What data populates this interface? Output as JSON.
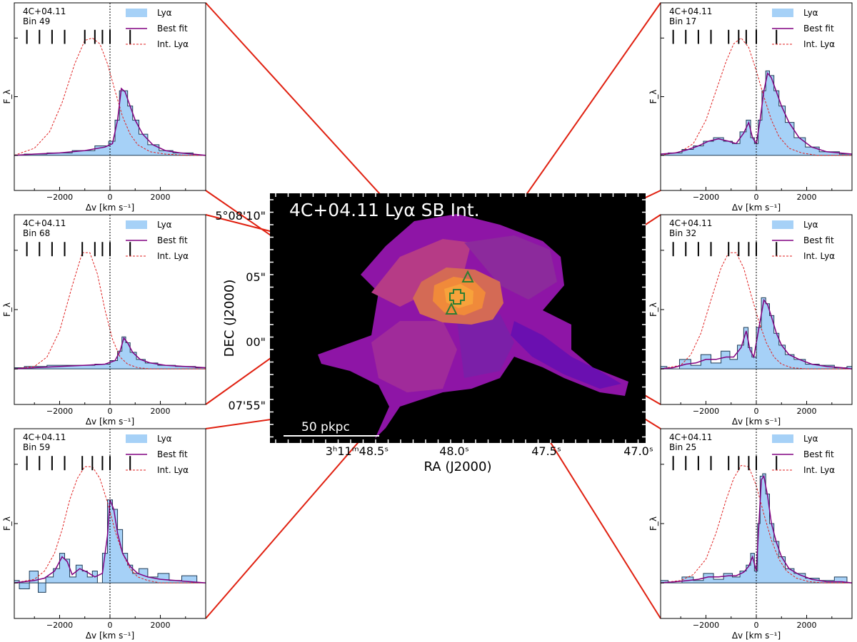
{
  "colors": {
    "lya_fill": "#a6d1f7",
    "lya_step": "#1f3b55",
    "best_fit": "#800080",
    "int_lya": "#e02020",
    "connector": "#e02010",
    "map_background": "#000000",
    "marker": "#2e7d32"
  },
  "map": {
    "title": "4C+04.11 Lyα SB Int.",
    "xlabel": "RA (J2000)",
    "ylabel": "DEC (J2000)",
    "x_ticks": [
      "3ʰ11ᵐ48.5ˢ",
      "48.0ˢ",
      "47.5ˢ",
      "47.0ˢ"
    ],
    "y_ticks": [
      "5°08'10\"",
      "05\"",
      "00\"",
      "07'55\""
    ],
    "scale_bar_label": "50 pkpc",
    "markers": [
      {
        "symbol": "cross",
        "name": "plus-marker"
      },
      {
        "symbol": "triangle",
        "name": "triangle-marker"
      },
      {
        "symbol": "triangle",
        "name": "triangle-marker"
      }
    ]
  },
  "chart_data": [
    {
      "type": "line",
      "panel": "top-left",
      "title": "4C+04.11",
      "subtitle": "Bin 49",
      "xlabel": "Δv [km s⁻¹]",
      "ylabel": "F_λ",
      "xlim": [
        -3800,
        3800
      ],
      "ylim": [
        -0.3,
        1.3
      ],
      "x_ticks": [
        -2000,
        0,
        2000
      ],
      "legend_position": "top-right",
      "series": [
        {
          "name": "Lyα",
          "style": "filled-step",
          "x": [
            -3800,
            -3000,
            -2000,
            -1000,
            -200,
            100,
            300,
            450,
            600,
            800,
            1000,
            1300,
            1700,
            2200,
            2800,
            3800
          ],
          "y": [
            0,
            0.01,
            0.02,
            0.04,
            0.08,
            0.12,
            0.3,
            0.55,
            0.55,
            0.42,
            0.3,
            0.18,
            0.09,
            0.04,
            0.02,
            0
          ]
        },
        {
          "name": "Best fit",
          "x": [
            -3800,
            -3000,
            -2000,
            -1000,
            -200,
            100,
            300,
            450,
            600,
            800,
            1000,
            1300,
            1700,
            2200,
            2800,
            3800
          ],
          "y": [
            0,
            0.01,
            0.02,
            0.04,
            0.07,
            0.1,
            0.3,
            0.57,
            0.54,
            0.42,
            0.3,
            0.18,
            0.09,
            0.04,
            0.02,
            0
          ]
        },
        {
          "name": "Int. Lyα",
          "x": [
            -3800,
            -3000,
            -2400,
            -1900,
            -1400,
            -1000,
            -700,
            -400,
            -100,
            200,
            500,
            800,
            1100,
            1600,
            2200,
            3000,
            3800
          ],
          "y": [
            0,
            0.06,
            0.2,
            0.45,
            0.78,
            0.98,
            1.0,
            0.95,
            0.78,
            0.55,
            0.33,
            0.18,
            0.09,
            0.03,
            0.01,
            0,
            0
          ]
        }
      ],
      "absorber_velocities": [
        -3300,
        -2800,
        -2300,
        -1800,
        -1000,
        -600,
        -300,
        0,
        800
      ]
    },
    {
      "type": "line",
      "panel": "middle-left",
      "title": "4C+04.11",
      "subtitle": "Bin 68",
      "xlabel": "Δv [km s⁻¹]",
      "ylabel": "F_λ",
      "xlim": [
        -3800,
        3800
      ],
      "ylim": [
        -0.3,
        1.3
      ],
      "x_ticks": [
        -2000,
        0,
        2000
      ],
      "legend_position": "top-right",
      "series": [
        {
          "name": "Lyα",
          "style": "filled-step",
          "x": [
            -3800,
            -3000,
            -2000,
            -1000,
            -200,
            200,
            400,
            550,
            700,
            900,
            1200,
            1600,
            2200,
            3000,
            3800
          ],
          "y": [
            0.01,
            0.02,
            0.03,
            0.03,
            0.04,
            0.07,
            0.15,
            0.27,
            0.22,
            0.14,
            0.08,
            0.05,
            0.03,
            0.02,
            0.01
          ]
        },
        {
          "name": "Best fit",
          "x": [
            -3800,
            -3000,
            -2000,
            -1000,
            -200,
            200,
            400,
            550,
            700,
            900,
            1200,
            1600,
            2200,
            3000,
            3800
          ],
          "y": [
            0,
            0.01,
            0.02,
            0.03,
            0.04,
            0.07,
            0.15,
            0.26,
            0.22,
            0.14,
            0.08,
            0.05,
            0.03,
            0.02,
            0.01
          ]
        },
        {
          "name": "Int. Lyα",
          "x": [
            -3800,
            -3000,
            -2500,
            -2000,
            -1500,
            -1100,
            -800,
            -500,
            -200,
            100,
            400,
            700,
            1100,
            1600,
            2200,
            3000,
            3800
          ],
          "y": [
            0,
            0.02,
            0.1,
            0.32,
            0.7,
            0.98,
            0.98,
            0.8,
            0.5,
            0.25,
            0.1,
            0.04,
            0.01,
            0,
            0,
            0,
            0
          ]
        }
      ],
      "absorber_velocities": [
        -3300,
        -2800,
        -2300,
        -1800,
        -1100,
        -600,
        -300,
        0,
        800
      ]
    },
    {
      "type": "line",
      "panel": "bottom-left",
      "title": "4C+04.11",
      "subtitle": "Bin 59",
      "xlabel": "Δv [km s⁻¹]",
      "ylabel": "F_λ",
      "xlim": [
        -3800,
        3800
      ],
      "ylim": [
        -0.3,
        1.3
      ],
      "x_ticks": [
        -2000,
        0,
        2000
      ],
      "legend_position": "top-right",
      "series": [
        {
          "name": "Lyα",
          "style": "filled-step",
          "x": [
            -3800,
            -3400,
            -3000,
            -2700,
            -2400,
            -2100,
            -1900,
            -1700,
            -1500,
            -1200,
            -1000,
            -800,
            -600,
            -400,
            -200,
            0,
            200,
            400,
            600,
            800,
            1000,
            1300,
            1700,
            2100,
            2600,
            3100,
            3800
          ],
          "y": [
            0.02,
            -0.05,
            0.1,
            -0.08,
            0.05,
            0.12,
            0.25,
            0.2,
            0.05,
            0.15,
            0.1,
            0.05,
            0.1,
            0.0,
            0.25,
            0.7,
            0.62,
            0.45,
            0.25,
            0.15,
            0.08,
            0.12,
            0.05,
            0.08,
            0.02,
            0.06,
            0.0
          ]
        },
        {
          "name": "Best fit",
          "x": [
            -3800,
            -3000,
            -2600,
            -2200,
            -1900,
            -1700,
            -1500,
            -1200,
            -900,
            -600,
            -300,
            -100,
            0,
            150,
            300,
            500,
            800,
            1100,
            1500,
            2000,
            2600,
            3200,
            3800
          ],
          "y": [
            0,
            0.02,
            0.04,
            0.1,
            0.22,
            0.18,
            0.07,
            0.12,
            0.09,
            0.05,
            0.08,
            0.4,
            0.7,
            0.62,
            0.42,
            0.25,
            0.14,
            0.08,
            0.05,
            0.03,
            0.02,
            0.01,
            0
          ]
        },
        {
          "name": "Int. Lyα",
          "x": [
            -3800,
            -3000,
            -2600,
            -2200,
            -1900,
            -1600,
            -1300,
            -1000,
            -700,
            -400,
            -100,
            200,
            500,
            800,
            1100,
            1500,
            2000,
            2600,
            3200,
            3800
          ],
          "y": [
            0,
            0.03,
            0.1,
            0.25,
            0.45,
            0.7,
            0.88,
            0.98,
            0.98,
            0.88,
            0.68,
            0.44,
            0.25,
            0.12,
            0.05,
            0.02,
            0,
            0,
            0,
            0
          ]
        }
      ],
      "absorber_velocities": [
        -3300,
        -2800,
        -2300,
        -1800,
        -1100,
        -700,
        -300,
        0,
        800
      ]
    },
    {
      "type": "line",
      "panel": "top-right",
      "title": "4C+04.11",
      "subtitle": "Bin 17",
      "xlabel": "Δv [km s⁻¹]",
      "ylabel": "F_λ",
      "xlim": [
        -3800,
        3800
      ],
      "ylim": [
        -0.3,
        1.3
      ],
      "x_ticks": [
        -2000,
        0,
        2000
      ],
      "legend_position": "top-right",
      "series": [
        {
          "name": "Lyα",
          "style": "filled-step",
          "x": [
            -3800,
            -3200,
            -2700,
            -2300,
            -1900,
            -1500,
            -1100,
            -800,
            -500,
            -300,
            -150,
            0,
            150,
            300,
            450,
            600,
            800,
            1000,
            1300,
            1700,
            2200,
            2800,
            3800
          ],
          "y": [
            0.01,
            0.02,
            0.05,
            0.08,
            0.12,
            0.15,
            0.12,
            0.1,
            0.2,
            0.3,
            0.15,
            0.1,
            0.3,
            0.55,
            0.72,
            0.68,
            0.55,
            0.42,
            0.28,
            0.15,
            0.07,
            0.03,
            0.01
          ]
        },
        {
          "name": "Best fit",
          "x": [
            -3800,
            -3200,
            -2700,
            -2300,
            -1900,
            -1500,
            -1100,
            -800,
            -500,
            -300,
            -150,
            0,
            150,
            300,
            450,
            600,
            800,
            1000,
            1300,
            1700,
            2200,
            2800,
            3800
          ],
          "y": [
            0.01,
            0.02,
            0.05,
            0.08,
            0.12,
            0.14,
            0.12,
            0.1,
            0.19,
            0.28,
            0.15,
            0.1,
            0.3,
            0.55,
            0.7,
            0.66,
            0.54,
            0.42,
            0.28,
            0.15,
            0.07,
            0.03,
            0.01
          ]
        },
        {
          "name": "Int. Lyα",
          "x": [
            -3800,
            -3000,
            -2500,
            -2000,
            -1600,
            -1200,
            -900,
            -600,
            -300,
            0,
            300,
            600,
            900,
            1300,
            1800,
            2400,
            3000,
            3800
          ],
          "y": [
            0,
            0.03,
            0.1,
            0.3,
            0.55,
            0.8,
            0.95,
            1.0,
            0.92,
            0.72,
            0.5,
            0.3,
            0.16,
            0.06,
            0.02,
            0,
            0,
            0
          ]
        }
      ],
      "absorber_velocities": [
        -3300,
        -2800,
        -2300,
        -1800,
        -1100,
        -700,
        -400,
        0,
        800
      ]
    },
    {
      "type": "line",
      "panel": "middle-right",
      "title": "4C+04.11",
      "subtitle": "Bin 32",
      "xlabel": "Δv [km s⁻¹]",
      "ylabel": "F_λ",
      "xlim": [
        -3800,
        3800
      ],
      "ylim": [
        -0.3,
        1.3
      ],
      "x_ticks": [
        -2000,
        0,
        2000
      ],
      "legend_position": "top-right",
      "series": [
        {
          "name": "Lyα",
          "style": "filled-step",
          "x": [
            -3800,
            -3300,
            -2800,
            -2400,
            -2000,
            -1600,
            -1200,
            -900,
            -600,
            -400,
            -250,
            -100,
            100,
            300,
            450,
            600,
            800,
            1000,
            1300,
            1700,
            2200,
            2800,
            3400,
            3800
          ],
          "y": [
            0.02,
            0.0,
            0.08,
            0.03,
            0.12,
            0.05,
            0.15,
            0.08,
            0.2,
            0.35,
            0.18,
            0.1,
            0.35,
            0.6,
            0.55,
            0.45,
            0.3,
            0.2,
            0.12,
            0.08,
            0.04,
            0.03,
            0.01,
            0.02
          ]
        },
        {
          "name": "Best fit",
          "x": [
            -3800,
            -3300,
            -2800,
            -2400,
            -2000,
            -1600,
            -1200,
            -900,
            -600,
            -400,
            -250,
            -100,
            100,
            300,
            450,
            600,
            800,
            1000,
            1300,
            1700,
            2200,
            2800,
            3400,
            3800
          ],
          "y": [
            0,
            0.01,
            0.04,
            0.05,
            0.08,
            0.08,
            0.1,
            0.1,
            0.18,
            0.32,
            0.16,
            0.1,
            0.34,
            0.58,
            0.54,
            0.44,
            0.3,
            0.2,
            0.12,
            0.08,
            0.04,
            0.02,
            0.01,
            0
          ]
        },
        {
          "name": "Int. Lyα",
          "x": [
            -3800,
            -3000,
            -2600,
            -2200,
            -1800,
            -1400,
            -1100,
            -800,
            -500,
            -200,
            100,
            400,
            700,
            1000,
            1400,
            2000,
            2600,
            3200,
            3800
          ],
          "y": [
            0,
            0.03,
            0.12,
            0.3,
            0.58,
            0.85,
            0.98,
            0.98,
            0.85,
            0.62,
            0.4,
            0.22,
            0.1,
            0.04,
            0.01,
            0,
            0,
            0,
            0
          ]
        }
      ],
      "absorber_velocities": [
        -3300,
        -2800,
        -2300,
        -1800,
        -1100,
        -700,
        -300,
        0,
        800
      ]
    },
    {
      "type": "line",
      "panel": "bottom-right",
      "title": "4C+04.11",
      "subtitle": "Bin 25",
      "xlabel": "Δv [km s⁻¹]",
      "ylabel": "F_λ",
      "xlim": [
        -3800,
        3800
      ],
      "ylim": [
        -0.3,
        1.3
      ],
      "x_ticks": [
        -2000,
        0,
        2000
      ],
      "legend_position": "top-right",
      "series": [
        {
          "name": "Lyα",
          "style": "filled-step",
          "x": [
            -3800,
            -3200,
            -2700,
            -2300,
            -1900,
            -1500,
            -1100,
            -800,
            -500,
            -300,
            -150,
            0,
            100,
            200,
            300,
            450,
            600,
            800,
            1000,
            1300,
            1700,
            2200,
            2800,
            3400,
            3800
          ],
          "y": [
            0.02,
            0.0,
            0.05,
            0.02,
            0.08,
            0.03,
            0.08,
            0.05,
            0.1,
            0.15,
            0.25,
            0.1,
            0.5,
            0.9,
            0.92,
            0.75,
            0.5,
            0.35,
            0.22,
            0.12,
            0.08,
            0.04,
            0.02,
            0.05,
            0.0
          ]
        },
        {
          "name": "Best fit",
          "x": [
            -3800,
            -3200,
            -2700,
            -2300,
            -1900,
            -1500,
            -1100,
            -800,
            -500,
            -300,
            -150,
            0,
            100,
            200,
            300,
            450,
            600,
            800,
            1000,
            1300,
            1700,
            2200,
            2800,
            3400,
            3800
          ],
          "y": [
            0,
            0.01,
            0.02,
            0.03,
            0.05,
            0.05,
            0.06,
            0.06,
            0.09,
            0.14,
            0.22,
            0.1,
            0.48,
            0.87,
            0.9,
            0.73,
            0.5,
            0.34,
            0.22,
            0.12,
            0.07,
            0.03,
            0.01,
            0.01,
            0
          ]
        },
        {
          "name": "Int. Lyα",
          "x": [
            -3800,
            -3000,
            -2500,
            -2000,
            -1600,
            -1200,
            -900,
            -600,
            -300,
            0,
            300,
            600,
            900,
            1200,
            1600,
            2100,
            2700,
            3300,
            3800
          ],
          "y": [
            0,
            0.02,
            0.07,
            0.2,
            0.42,
            0.7,
            0.88,
            0.99,
            0.98,
            0.82,
            0.58,
            0.36,
            0.2,
            0.1,
            0.04,
            0.01,
            0,
            0,
            0
          ]
        }
      ],
      "absorber_velocities": [
        -3300,
        -2800,
        -2300,
        -1800,
        -1100,
        -700,
        -300,
        0,
        800
      ]
    }
  ]
}
